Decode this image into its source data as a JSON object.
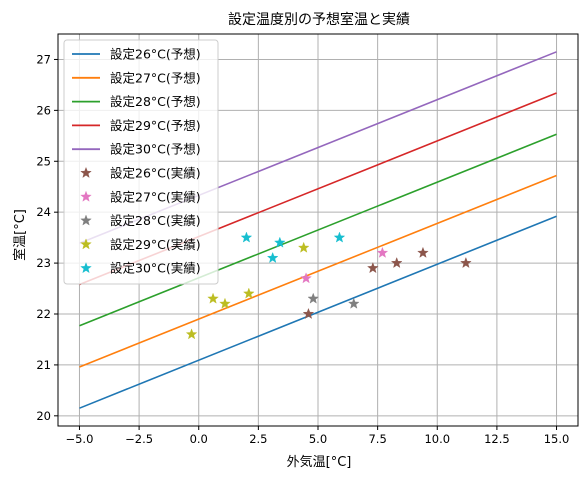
{
  "chart_data": {
    "type": "line",
    "title": "設定温度別の予想室温と実績",
    "xlabel": "外気温[°C]",
    "ylabel": "室温[°C]",
    "xlim": [
      -5.9,
      15.9
    ],
    "ylim": [
      19.8,
      27.5
    ],
    "xticks": [
      -5.0,
      -2.5,
      0.0,
      2.5,
      5.0,
      7.5,
      10.0,
      12.5,
      15.0
    ],
    "xtick_labels": [
      "−5.0",
      "−2.5",
      "0.0",
      "2.5",
      "5.0",
      "7.5",
      "10.0",
      "12.5",
      "15.0"
    ],
    "yticks": [
      20,
      21,
      22,
      23,
      24,
      25,
      26,
      27
    ],
    "ytick_labels": [
      "20",
      "21",
      "22",
      "23",
      "24",
      "25",
      "26",
      "27"
    ],
    "grid": true,
    "legend_position": "top-left",
    "series": [
      {
        "name": "設定26°C(予想)",
        "kind": "line",
        "color": "#1f77b4",
        "x": [
          -5,
          15
        ],
        "y": [
          20.15,
          23.92
        ]
      },
      {
        "name": "設定27°C(予想)",
        "kind": "line",
        "color": "#ff7f0e",
        "x": [
          -5,
          15
        ],
        "y": [
          20.96,
          24.72
        ]
      },
      {
        "name": "設定28°C(予想)",
        "kind": "line",
        "color": "#2ca02c",
        "x": [
          -5,
          15
        ],
        "y": [
          21.77,
          25.53
        ]
      },
      {
        "name": "設定29°C(予想)",
        "kind": "line",
        "color": "#d62728",
        "x": [
          -5,
          15
        ],
        "y": [
          22.58,
          26.34
        ]
      },
      {
        "name": "設定30°C(予想)",
        "kind": "line",
        "color": "#9467bd",
        "x": [
          -5,
          15
        ],
        "y": [
          23.39,
          27.15
        ]
      },
      {
        "name": "設定26°C(実績)",
        "kind": "star",
        "color": "#8c564b",
        "x": [
          4.6,
          7.3,
          8.3,
          9.4,
          11.2
        ],
        "y": [
          22.0,
          22.9,
          23.0,
          23.2,
          23.0
        ]
      },
      {
        "name": "設定27°C(実績)",
        "kind": "star",
        "color": "#e377c2",
        "x": [
          4.5,
          7.7
        ],
        "y": [
          22.7,
          23.2
        ]
      },
      {
        "name": "設定28°C(実績)",
        "kind": "star",
        "color": "#7f7f7f",
        "x": [
          4.8,
          6.5
        ],
        "y": [
          22.3,
          22.2
        ]
      },
      {
        "name": "設定29°C(実績)",
        "kind": "star",
        "color": "#bcbd22",
        "x": [
          -0.3,
          0.6,
          1.1,
          2.1,
          4.4
        ],
        "y": [
          21.6,
          22.3,
          22.2,
          22.4,
          23.3
        ]
      },
      {
        "name": "設定30°C(実績)",
        "kind": "star",
        "color": "#17becf",
        "x": [
          2.0,
          3.1,
          3.4,
          5.9
        ],
        "y": [
          23.5,
          23.1,
          23.4,
          23.5
        ]
      }
    ]
  }
}
